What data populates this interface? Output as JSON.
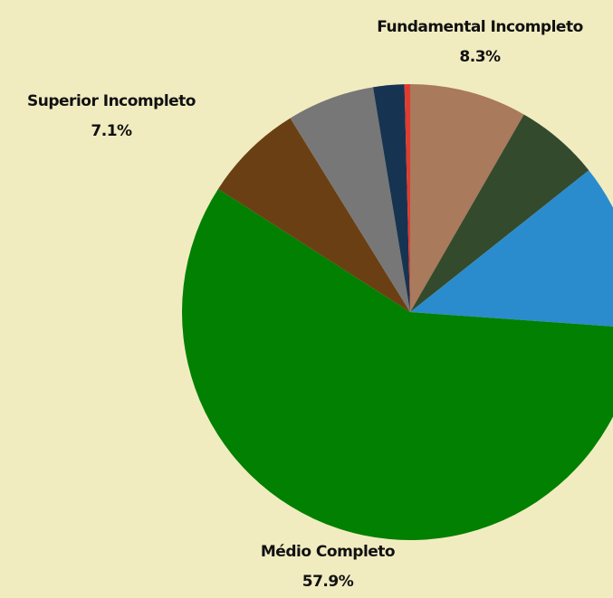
{
  "chart_data": {
    "type": "pie",
    "categories": [
      "Fundamental Incompleto",
      null,
      null,
      "Médio Completo",
      "Superior Incompleto",
      null,
      null,
      null
    ],
    "values": [
      8.3,
      6.0,
      11.8,
      57.9,
      7.1,
      6.2,
      2.2,
      0.4
    ],
    "value_labels": [
      "8.3%",
      null,
      null,
      "57.9%",
      "7.1%",
      null,
      null,
      null
    ],
    "colors": [
      "#a97a5c",
      "#344a2d",
      "#2a8ccd",
      "#018001",
      "#6b3f14",
      "#777777",
      "#163451",
      "#e03c31"
    ]
  }
}
